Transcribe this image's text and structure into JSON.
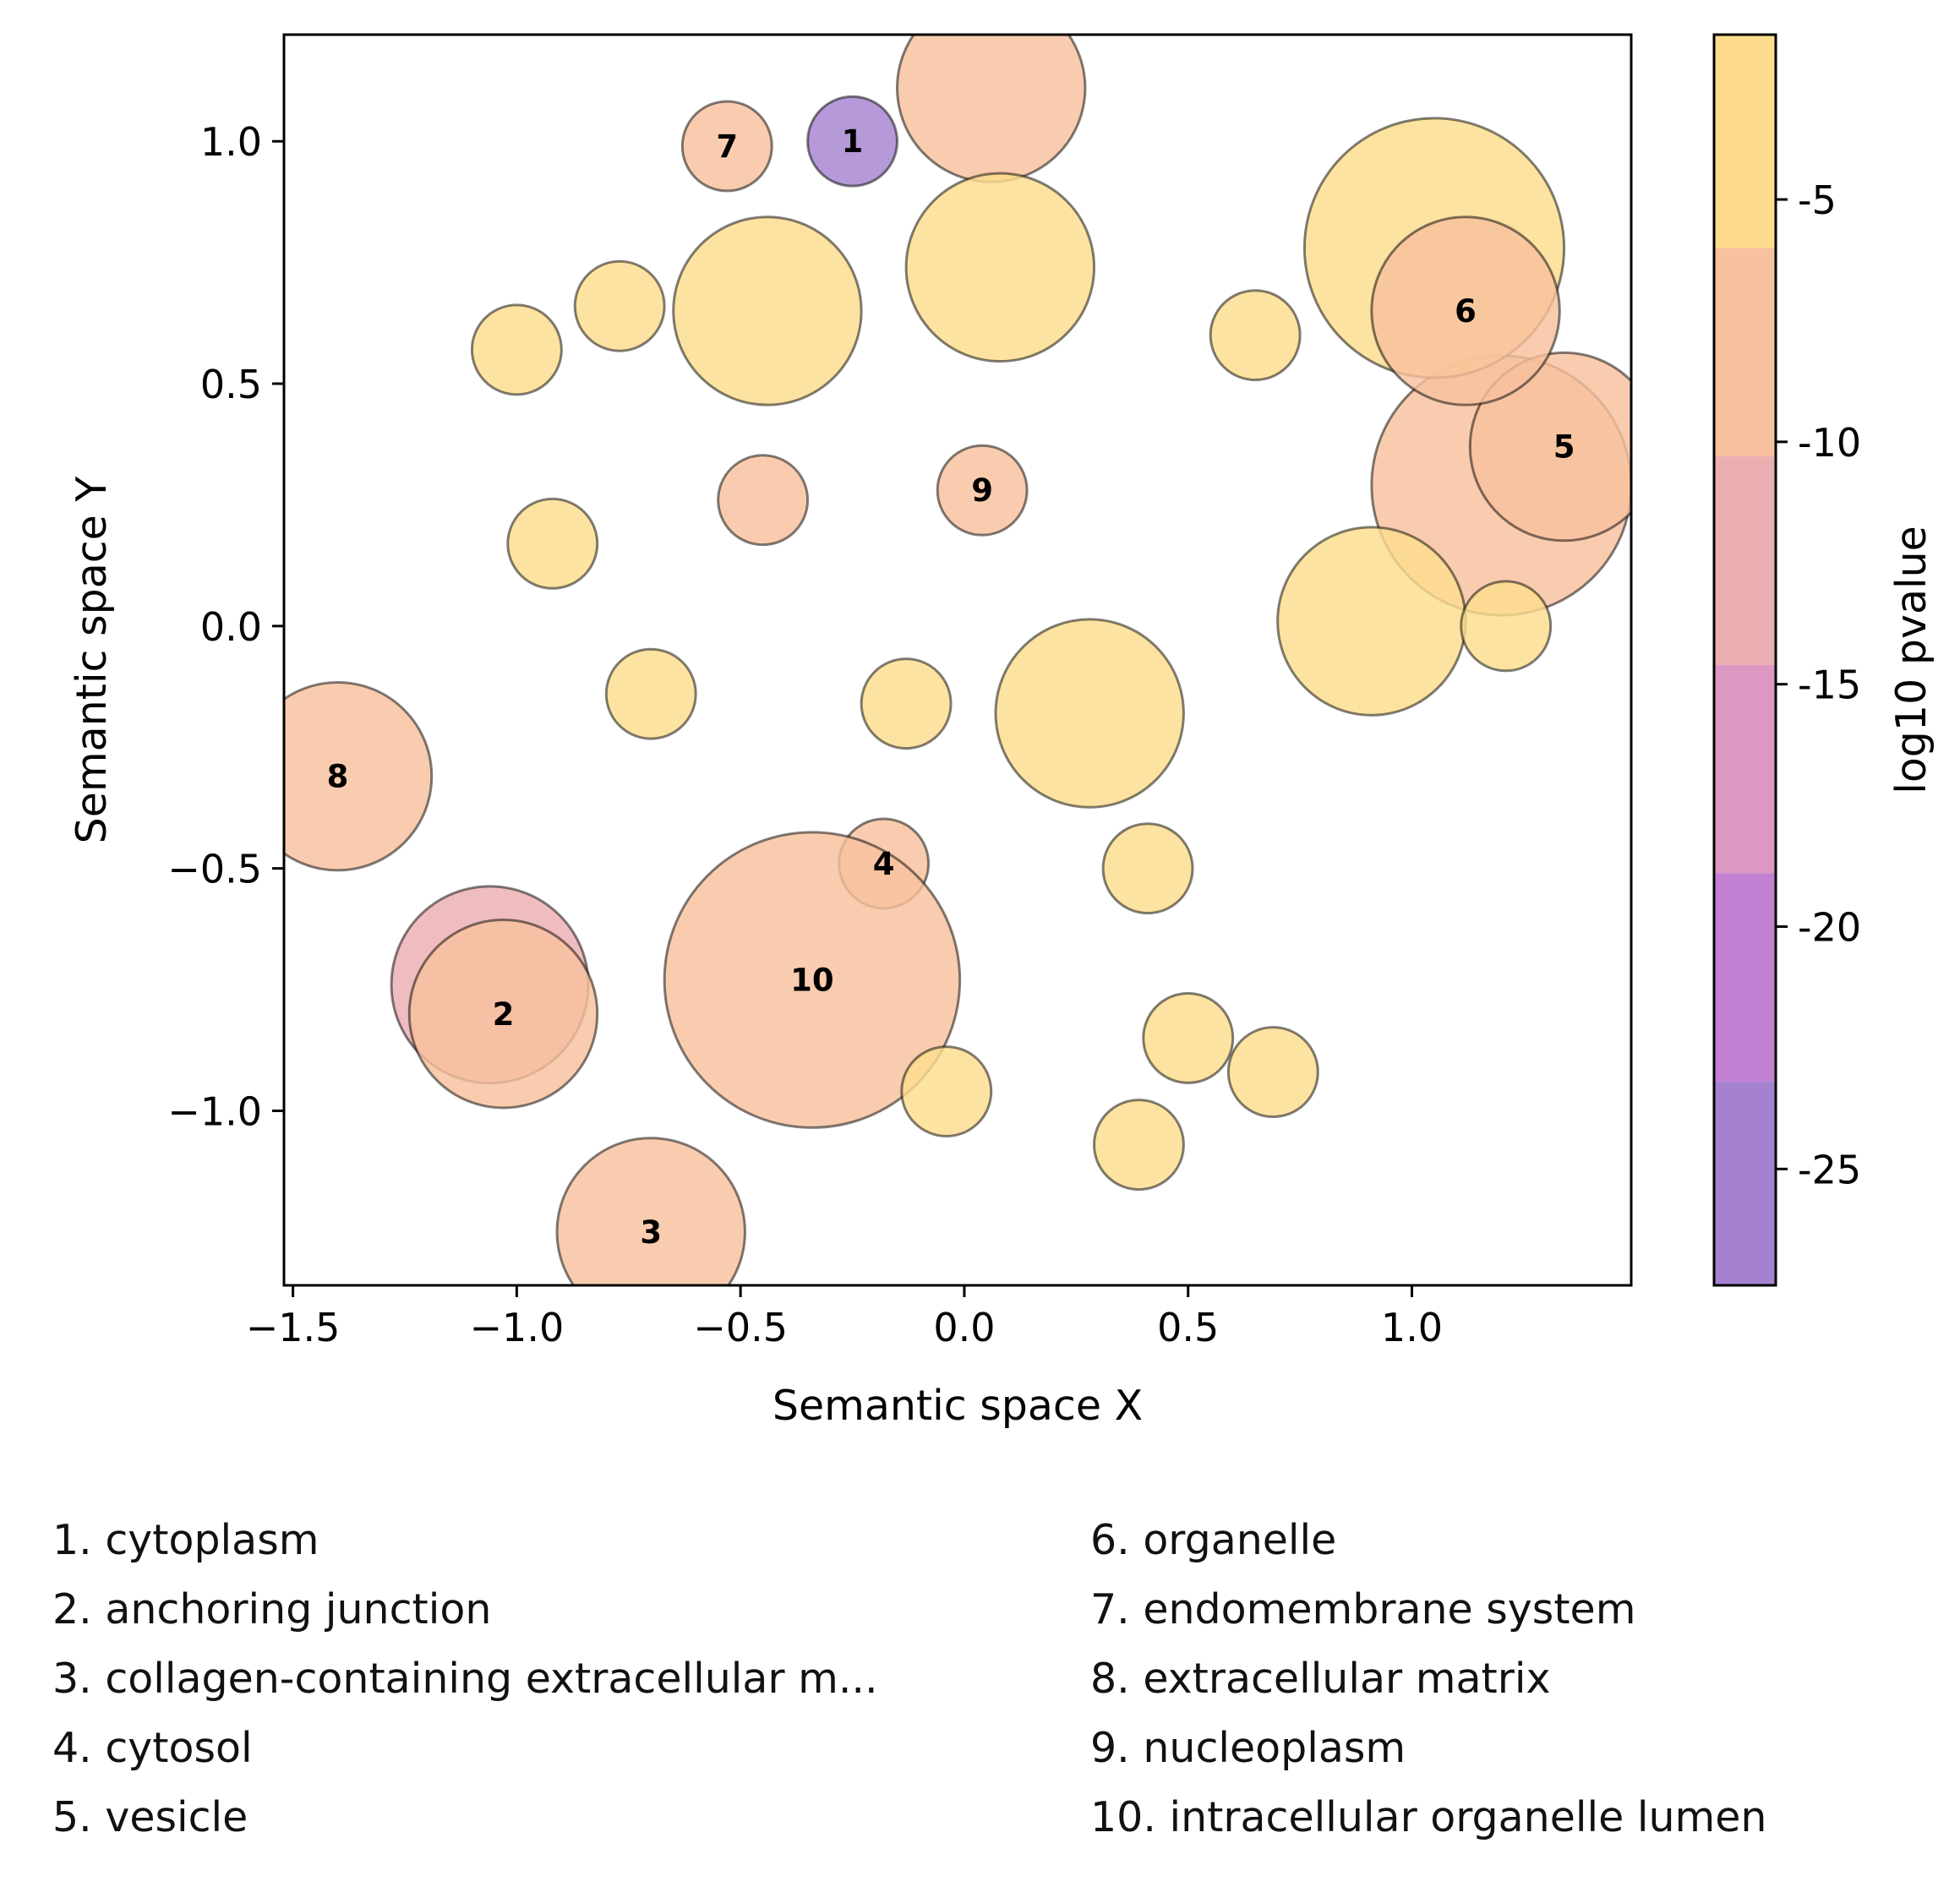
{
  "chart_data": {
    "type": "scatter",
    "xlabel": "Semantic space X",
    "ylabel": "Semantic space Y",
    "xlim": [
      -1.52,
      1.49
    ],
    "ylim": [
      -1.36,
      1.22
    ],
    "xticks": [
      -1.5,
      -1.0,
      -0.5,
      0.0,
      0.5,
      1.0
    ],
    "xtick_labels": [
      "−1.5",
      "−1.0",
      "−0.5",
      "0.0",
      "0.5",
      "1.0"
    ],
    "yticks": [
      1.0,
      0.5,
      0.0,
      -0.5,
      -1.0
    ],
    "ytick_labels": [
      "1.0",
      "0.5",
      "0.0",
      "−0.5",
      "−1.0"
    ],
    "grid": false,
    "colorbar": {
      "label": "log10 pvalue",
      "range": [
        -27.4,
        -1.6
      ],
      "ticks": [
        -5,
        -10,
        -15,
        -20,
        -25
      ],
      "tick_labels": [
        "-5",
        "-10",
        "-15",
        "-20",
        "-25"
      ],
      "bands": [
        {
          "from": -6.0,
          "to": -1.6,
          "color": "#fddd8d"
        },
        {
          "from": -10.3,
          "to": -6.0,
          "color": "#f8c19e"
        },
        {
          "from": -14.6,
          "to": -10.3,
          "color": "#ebaeb1"
        },
        {
          "from": -18.9,
          "to": -14.6,
          "color": "#dc97c2"
        },
        {
          "from": -23.2,
          "to": -18.9,
          "color": "#c281d2"
        },
        {
          "from": -27.4,
          "to": -23.2,
          "color": "#a582cf"
        }
      ]
    },
    "points": [
      {
        "x": -0.25,
        "y": 1.0,
        "size": 0.1,
        "log10p": -26,
        "label": "1"
      },
      {
        "x": -1.06,
        "y": -0.74,
        "size": 0.22,
        "log10p": -12,
        "label": ""
      },
      {
        "x": -1.03,
        "y": -0.8,
        "size": 0.21,
        "log10p": -8,
        "label": "2"
      },
      {
        "x": -0.7,
        "y": -1.25,
        "size": 0.21,
        "log10p": -8,
        "label": "3"
      },
      {
        "x": -0.18,
        "y": -0.49,
        "size": 0.1,
        "log10p": -8,
        "label": "4"
      },
      {
        "x": 1.2,
        "y": 0.29,
        "size": 0.29,
        "log10p": -8,
        "label": ""
      },
      {
        "x": 1.34,
        "y": 0.37,
        "size": 0.21,
        "log10p": -8,
        "label": "5"
      },
      {
        "x": 1.05,
        "y": 0.78,
        "size": 0.29,
        "log10p": -4,
        "label": ""
      },
      {
        "x": 1.12,
        "y": 0.65,
        "size": 0.21,
        "log10p": -8,
        "label": "6"
      },
      {
        "x": -0.53,
        "y": 0.99,
        "size": 0.1,
        "log10p": -8,
        "label": "7"
      },
      {
        "x": -1.4,
        "y": -0.31,
        "size": 0.21,
        "log10p": -8,
        "label": "8"
      },
      {
        "x": 0.04,
        "y": 0.28,
        "size": 0.1,
        "log10p": -8,
        "label": "9"
      },
      {
        "x": -0.34,
        "y": -0.73,
        "size": 0.33,
        "log10p": -8,
        "label": "10"
      },
      {
        "x": 0.06,
        "y": 1.11,
        "size": 0.21,
        "log10p": -8,
        "label": ""
      },
      {
        "x": -0.45,
        "y": 0.26,
        "size": 0.1,
        "log10p": -8,
        "label": ""
      },
      {
        "x": 0.08,
        "y": 0.74,
        "size": 0.21,
        "log10p": -4,
        "label": ""
      },
      {
        "x": -0.44,
        "y": 0.65,
        "size": 0.21,
        "log10p": -4,
        "label": ""
      },
      {
        "x": -0.77,
        "y": 0.66,
        "size": 0.1,
        "log10p": -4,
        "label": ""
      },
      {
        "x": -1.0,
        "y": 0.57,
        "size": 0.1,
        "log10p": -4,
        "label": ""
      },
      {
        "x": -0.92,
        "y": 0.17,
        "size": 0.1,
        "log10p": -4,
        "label": ""
      },
      {
        "x": -0.7,
        "y": -0.14,
        "size": 0.1,
        "log10p": -4,
        "label": ""
      },
      {
        "x": -0.13,
        "y": -0.16,
        "size": 0.1,
        "log10p": -4,
        "label": ""
      },
      {
        "x": 0.28,
        "y": -0.18,
        "size": 0.21,
        "log10p": -4,
        "label": ""
      },
      {
        "x": 0.65,
        "y": 0.6,
        "size": 0.1,
        "log10p": -4,
        "label": ""
      },
      {
        "x": 0.91,
        "y": 0.01,
        "size": 0.21,
        "log10p": -4,
        "label": ""
      },
      {
        "x": 1.21,
        "y": 0.0,
        "size": 0.1,
        "log10p": -4,
        "label": ""
      },
      {
        "x": 0.41,
        "y": -0.5,
        "size": 0.1,
        "log10p": -4,
        "label": ""
      },
      {
        "x": 0.5,
        "y": -0.85,
        "size": 0.1,
        "log10p": -4,
        "label": ""
      },
      {
        "x": 0.69,
        "y": -0.92,
        "size": 0.1,
        "log10p": -4,
        "label": ""
      },
      {
        "x": 0.39,
        "y": -1.07,
        "size": 0.1,
        "log10p": -4,
        "label": ""
      },
      {
        "x": -0.04,
        "y": -0.96,
        "size": 0.1,
        "log10p": -4,
        "label": ""
      }
    ],
    "legend": [
      "1. cytoplasm",
      "2. anchoring junction",
      "3. collagen-containing extracellular m...",
      "4. cytosol",
      "5. vesicle",
      "6. organelle",
      "7. endomembrane system",
      "8. extracellular matrix",
      "9. nucleoplasm",
      "10. intracellular organelle lumen"
    ]
  }
}
